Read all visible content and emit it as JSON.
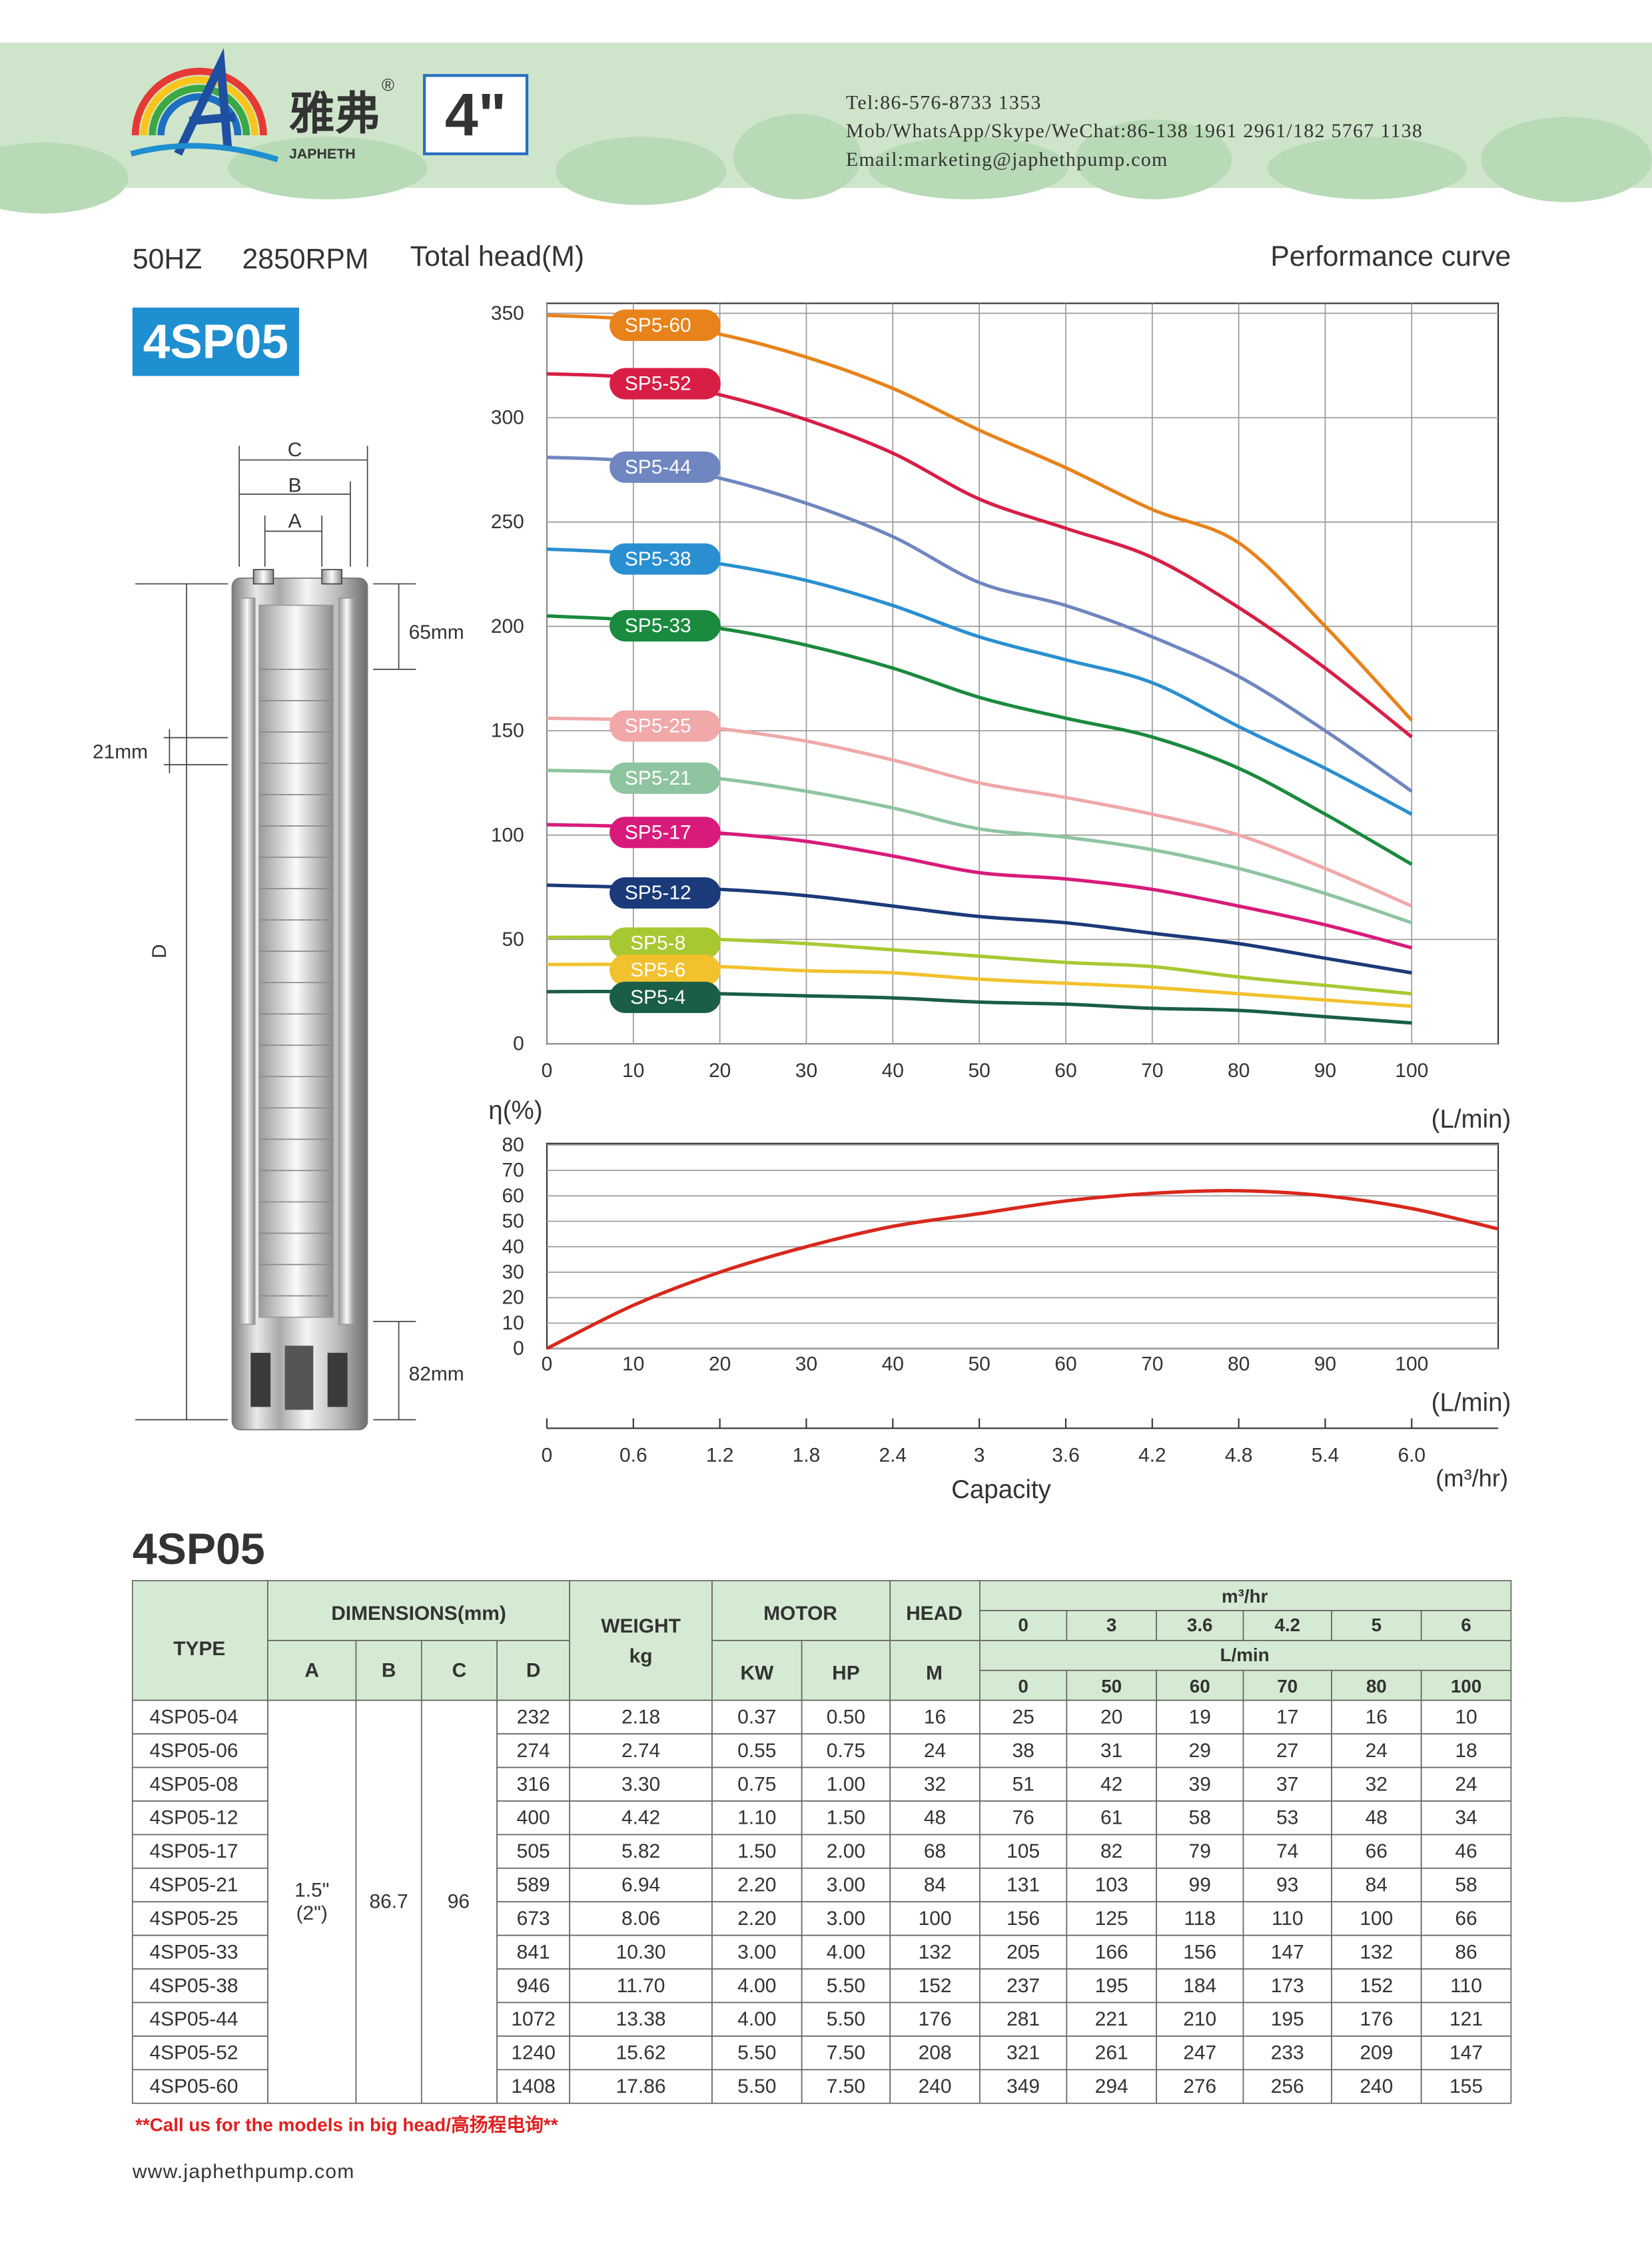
{
  "header": {
    "brand_cn": "雅弗",
    "brand_en": "JAPHETH",
    "registered": "®",
    "size": "4\"",
    "tel": "Tel:86-576-8733 1353",
    "mob": "Mob/WhatsApp/Skype/WeChat:86-138 1961 2961/182 5767 1138",
    "email": "Email:marketing@japhethpump.com"
  },
  "subheader": {
    "frequency": "50HZ",
    "speed": "2850RPM",
    "title": "Performance curve"
  },
  "model": "4SP05",
  "drawing": {
    "c": "C",
    "b": "B",
    "a": "A",
    "d": "D",
    "top": "65mm",
    "stage": "21mm",
    "bottom": "82mm"
  },
  "chart_data": [
    {
      "type": "line",
      "y_label": "Total head(M)",
      "x_unit": "(L/min)",
      "x": [
        0,
        10,
        20,
        30,
        40,
        50,
        60,
        70,
        80,
        90,
        100
      ],
      "xlim": [
        0,
        110
      ],
      "xticks": [
        0,
        10,
        20,
        30,
        40,
        50,
        60,
        70,
        80,
        90,
        100
      ],
      "ylim": [
        0,
        350
      ],
      "yticks": [
        0,
        50,
        100,
        150,
        200,
        250,
        300,
        350
      ],
      "grid": true,
      "series": [
        {
          "name": "SP5-60",
          "color": "#e8821a",
          "values": [
            349,
            347,
            340,
            329,
            314,
            294,
            276,
            256,
            240,
            200,
            155
          ]
        },
        {
          "name": "SP5-52",
          "color": "#d81e45",
          "values": [
            321,
            319,
            311,
            299,
            283,
            261,
            247,
            233,
            209,
            180,
            147
          ]
        },
        {
          "name": "SP5-44",
          "color": "#6f86c0",
          "values": [
            281,
            279,
            271,
            259,
            243,
            221,
            210,
            195,
            176,
            150,
            121
          ]
        },
        {
          "name": "SP5-38",
          "color": "#2a8fd0",
          "values": [
            237,
            235,
            230,
            222,
            210,
            195,
            184,
            173,
            152,
            132,
            110
          ]
        },
        {
          "name": "SP5-33",
          "color": "#1a8a3e",
          "values": [
            205,
            203,
            199,
            191,
            180,
            166,
            156,
            147,
            132,
            110,
            86
          ]
        },
        {
          "name": "SP5-25",
          "color": "#f0a8a8",
          "values": [
            156,
            155,
            151,
            145,
            136,
            125,
            118,
            110,
            100,
            84,
            66
          ]
        },
        {
          "name": "SP5-21",
          "color": "#8fc4a0",
          "values": [
            131,
            130,
            127,
            121,
            113,
            103,
            99,
            93,
            84,
            72,
            58
          ]
        },
        {
          "name": "SP5-17",
          "color": "#d81b7a",
          "values": [
            105,
            104,
            101,
            97,
            90,
            82,
            79,
            74,
            66,
            57,
            46
          ]
        },
        {
          "name": "SP5-12",
          "color": "#1b3a7a",
          "values": [
            76,
            75,
            74,
            71,
            66,
            61,
            58,
            53,
            48,
            41,
            34
          ]
        },
        {
          "name": "SP5-8",
          "color": "#a8c832",
          "values": [
            51,
            51,
            50,
            48,
            45,
            42,
            39,
            37,
            32,
            28,
            24
          ]
        },
        {
          "name": "SP5-6",
          "color": "#f2c12e",
          "values": [
            38,
            38,
            37,
            35,
            34,
            31,
            29,
            27,
            24,
            21,
            18
          ]
        },
        {
          "name": "SP5-4",
          "color": "#1a5e48",
          "values": [
            25,
            25,
            24,
            23,
            22,
            20,
            19,
            17,
            16,
            13,
            10
          ]
        }
      ]
    },
    {
      "type": "line",
      "y_label": "η(%)",
      "x_unit": "(L/min)",
      "x": [
        0,
        10,
        20,
        30,
        40,
        50,
        60,
        70,
        80,
        90,
        100,
        110
      ],
      "xlim": [
        0,
        110
      ],
      "xticks": [
        0,
        10,
        20,
        30,
        40,
        50,
        60,
        70,
        80,
        90,
        100
      ],
      "ylim": [
        0,
        80
      ],
      "yticks": [
        0,
        10,
        20,
        30,
        40,
        50,
        60,
        70,
        80
      ],
      "grid": true,
      "series": [
        {
          "color": "#d8281c",
          "values": [
            0,
            17,
            30,
            40,
            48,
            53,
            58,
            61,
            62,
            60,
            55,
            47
          ]
        }
      ]
    }
  ],
  "capacity_axis": {
    "label": "Capacity",
    "unit": "(m³/hr)",
    "xlim": [
      0,
      6.6
    ],
    "xticks": [
      0,
      0.6,
      1.2,
      1.8,
      2.4,
      3,
      3.6,
      4.2,
      4.8,
      5.4,
      {
        "value": 6,
        "label": "6.0"
      }
    ]
  },
  "table": {
    "title": "4SP05",
    "headers": {
      "type": "TYPE",
      "dimensions": "DIMENSIONS(mm)",
      "dims": [
        "A",
        "B",
        "C",
        "D"
      ],
      "weight": "WEIGHT",
      "weight_unit": "kg",
      "motor": "MOTOR",
      "motor_cols": [
        "KW",
        "HP"
      ],
      "head": "HEAD",
      "head_unit": "M",
      "flow_m3_unit": "m³/hr",
      "flow_m3": [
        "0",
        "3",
        "3.6",
        "4.2",
        "5",
        "6"
      ],
      "flow_l_unit": "L/min",
      "flow_l": [
        "0",
        "50",
        "60",
        "70",
        "80",
        "100"
      ]
    },
    "shared": {
      "a": "1.5\"",
      "a_alt": "(2\")",
      "b": "86.7",
      "c": "96"
    },
    "rows": [
      [
        "4SP05-04",
        "232",
        "2.18",
        "0.37",
        "0.50",
        "16",
        "25",
        "20",
        "19",
        "17",
        "16",
        "10"
      ],
      [
        "4SP05-06",
        "274",
        "2.74",
        "0.55",
        "0.75",
        "24",
        "38",
        "31",
        "29",
        "27",
        "24",
        "18"
      ],
      [
        "4SP05-08",
        "316",
        "3.30",
        "0.75",
        "1.00",
        "32",
        "51",
        "42",
        "39",
        "37",
        "32",
        "24"
      ],
      [
        "4SP05-12",
        "400",
        "4.42",
        "1.10",
        "1.50",
        "48",
        "76",
        "61",
        "58",
        "53",
        "48",
        "34"
      ],
      [
        "4SP05-17",
        "505",
        "5.82",
        "1.50",
        "2.00",
        "68",
        "105",
        "82",
        "79",
        "74",
        "66",
        "46"
      ],
      [
        "4SP05-21",
        "589",
        "6.94",
        "2.20",
        "3.00",
        "84",
        "131",
        "103",
        "99",
        "93",
        "84",
        "58"
      ],
      [
        "4SP05-25",
        "673",
        "8.06",
        "2.20",
        "3.00",
        "100",
        "156",
        "125",
        "118",
        "110",
        "100",
        "66"
      ],
      [
        "4SP05-33",
        "841",
        "10.30",
        "3.00",
        "4.00",
        "132",
        "205",
        "166",
        "156",
        "147",
        "132",
        "86"
      ],
      [
        "4SP05-38",
        "946",
        "11.70",
        "4.00",
        "5.50",
        "152",
        "237",
        "195",
        "184",
        "173",
        "152",
        "110"
      ],
      [
        "4SP05-44",
        "1072",
        "13.38",
        "4.00",
        "5.50",
        "176",
        "281",
        "221",
        "210",
        "195",
        "176",
        "121"
      ],
      [
        "4SP05-52",
        "1240",
        "15.62",
        "5.50",
        "7.50",
        "208",
        "321",
        "261",
        "247",
        "233",
        "209",
        "147"
      ],
      [
        "4SP05-60",
        "1408",
        "17.86",
        "5.50",
        "7.50",
        "240",
        "349",
        "294",
        "276",
        "256",
        "240",
        "155"
      ]
    ]
  },
  "note": "**Call us for the models in big head/高扬程电询**",
  "website": "www.japhethpump.com"
}
